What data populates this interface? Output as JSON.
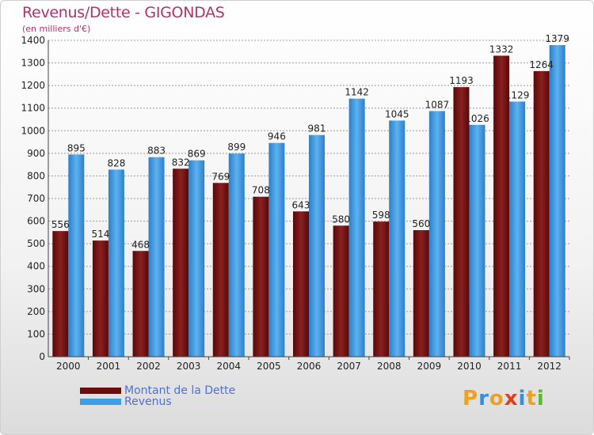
{
  "title": "Revenus/Dette - GIGONDAS",
  "subtitle": "(en milliers d'€)",
  "logo": {
    "text": "Proxiti",
    "letters": [
      "P",
      "r",
      "o",
      "x",
      "i",
      "t",
      "i"
    ],
    "colors": [
      "#f0a020",
      "#3a8de0",
      "#f0a020",
      "#e04020",
      "#3a8de0",
      "#f0a020",
      "#5cb830"
    ]
  },
  "colors": {
    "dette": "#7a1010",
    "revenus": "#3f9fe6",
    "title": "#b0336b",
    "legend_text": "#4f6fdb"
  },
  "legend": [
    {
      "label": "Montant de la Dette",
      "color": "#6a0d0d"
    },
    {
      "label": "Revenus",
      "color": "#3f9fe6"
    }
  ],
  "chart_data": {
    "type": "bar",
    "categories": [
      "2000",
      "2001",
      "2002",
      "2003",
      "2004",
      "2005",
      "2006",
      "2007",
      "2008",
      "2009",
      "2010",
      "2011",
      "2012"
    ],
    "series": [
      {
        "name": "Montant de la Dette",
        "values": [
          556,
          514,
          468,
          832,
          769,
          708,
          643,
          580,
          598,
          560,
          1193,
          1332,
          1264
        ]
      },
      {
        "name": "Revenus",
        "values": [
          895,
          828,
          883,
          869,
          899,
          946,
          981,
          1142,
          1045,
          1087,
          1026,
          1129,
          1379
        ]
      }
    ],
    "ylim": [
      0,
      1400
    ],
    "yticks": [
      0,
      100,
      200,
      300,
      400,
      500,
      600,
      700,
      800,
      900,
      1000,
      1100,
      1200,
      1300,
      1400
    ],
    "grid": true,
    "data_labels": [
      [
        "556",
        "514",
        "468",
        "832",
        "769",
        "708",
        "643",
        "580",
        "598",
        "560",
        "1193",
        "1332",
        "1264"
      ],
      [
        "895",
        "828",
        "883",
        "869",
        "899",
        "946",
        "981",
        "1142",
        "1045",
        "1087",
        "1026",
        "1129",
        "1379"
      ]
    ]
  }
}
